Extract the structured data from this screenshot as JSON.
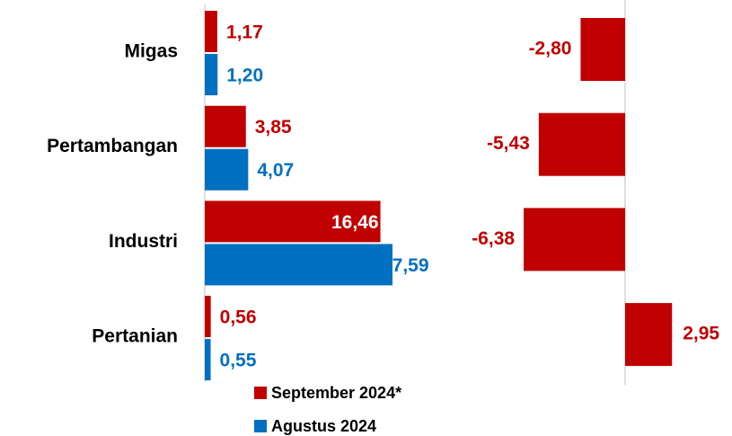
{
  "chart_data": [
    {
      "type": "bar",
      "orientation": "horizontal",
      "categories": [
        "Migas",
        "Pertambangan",
        "Industri",
        "Pertanian"
      ],
      "series": [
        {
          "name": "September 2024*",
          "color": "#c00000",
          "values": [
            1.17,
            3.85,
            16.46,
            0.56
          ],
          "value_labels": [
            "1,17",
            "3,85",
            "16,46",
            "0,56"
          ]
        },
        {
          "name": "Agustus 2024",
          "color": "#0070c0",
          "values": [
            1.2,
            4.07,
            17.59,
            0.55
          ],
          "value_labels": [
            "1,20",
            "4,07",
            "17,59",
            "0,55"
          ]
        }
      ],
      "xlim": [
        0,
        20
      ]
    },
    {
      "type": "bar",
      "orientation": "horizontal",
      "series": [
        {
          "color": "#c00000",
          "values": [
            -2.8,
            -5.43,
            -6.38,
            2.95
          ],
          "value_labels": [
            "-2,80",
            "-5,43",
            "-6,38",
            "2,95"
          ]
        }
      ],
      "xlim": [
        -8,
        4
      ]
    }
  ]
}
